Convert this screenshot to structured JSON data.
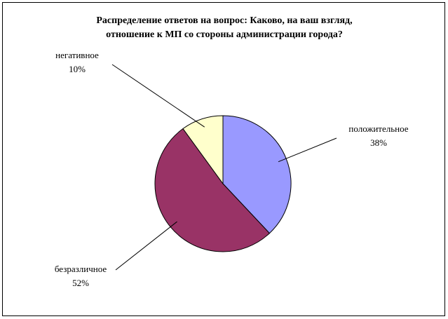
{
  "chart_data": {
    "type": "pie",
    "title": [
      "Распределение ответов на вопрос:  Каково, на ваш взгляд,",
      "отношение к МП со стороны администрации города?"
    ],
    "categories": [
      "положительное",
      "безразличное",
      "негативное"
    ],
    "values": [
      38,
      52,
      10
    ],
    "value_labels": [
      "38%",
      "52%",
      "10%"
    ],
    "colors": [
      "#9999ff",
      "#993366",
      "#ffffcc"
    ]
  }
}
